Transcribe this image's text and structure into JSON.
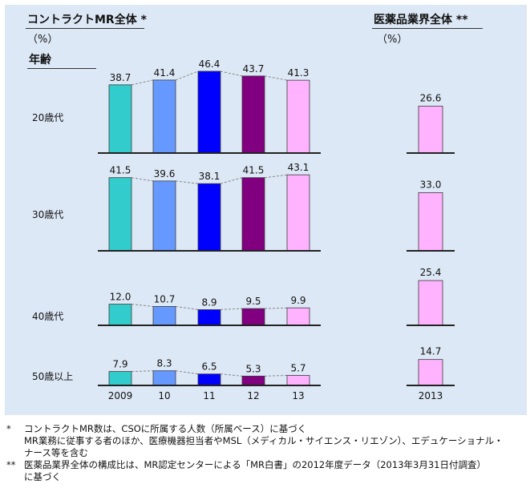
{
  "left_title": "コントラクトMR全体 *",
  "right_title": "医薬品業界全体 **",
  "unit": "（%）",
  "row_header": "年齢",
  "colors": [
    "#33cccc",
    "#6699ff",
    "#0000ff",
    "#800080",
    "#ffb3ff"
  ],
  "chart_data": [
    {
      "type": "bar",
      "title": "コントラクトMR全体 *",
      "unit": "%",
      "categories": [
        "2009",
        "10",
        "11",
        "12",
        "13"
      ],
      "series": [
        {
          "name": "20歳代",
          "values": [
            38.7,
            41.4,
            46.4,
            43.7,
            41.3
          ]
        },
        {
          "name": "30歳代",
          "values": [
            41.5,
            39.6,
            38.1,
            41.5,
            43.1
          ]
        },
        {
          "name": "40歳代",
          "values": [
            12.0,
            10.7,
            8.9,
            9.5,
            9.9
          ]
        },
        {
          "name": "50歳以上",
          "values": [
            7.9,
            8.3,
            6.5,
            5.3,
            5.7
          ]
        }
      ]
    },
    {
      "type": "bar",
      "title": "医薬品業界全体 **",
      "unit": "%",
      "categories": [
        "2013"
      ],
      "series": [
        {
          "name": "20歳代",
          "values": [
            26.6
          ]
        },
        {
          "name": "30歳代",
          "values": [
            33.0
          ]
        },
        {
          "name": "40歳代",
          "values": [
            25.4
          ]
        },
        {
          "name": "50歳以上",
          "values": [
            14.7
          ]
        }
      ]
    }
  ],
  "notes": [
    {
      "mark": "*",
      "lines": [
        "コントラクトMR数は、CSOに所属する人数（所属ベース）に基づく",
        "MR業務に従事する者のほか、医療機器担当者やMSL（メディカル・サイエンス・リエゾン）、エデュケーショナル・",
        "ナース等を含む"
      ]
    },
    {
      "mark": "**",
      "lines": [
        "医薬品業界全体の構成比は、MR認定センターによる「MR白書」の2012年度データ（2013年3月31日付調査）",
        "に基づく"
      ]
    }
  ]
}
